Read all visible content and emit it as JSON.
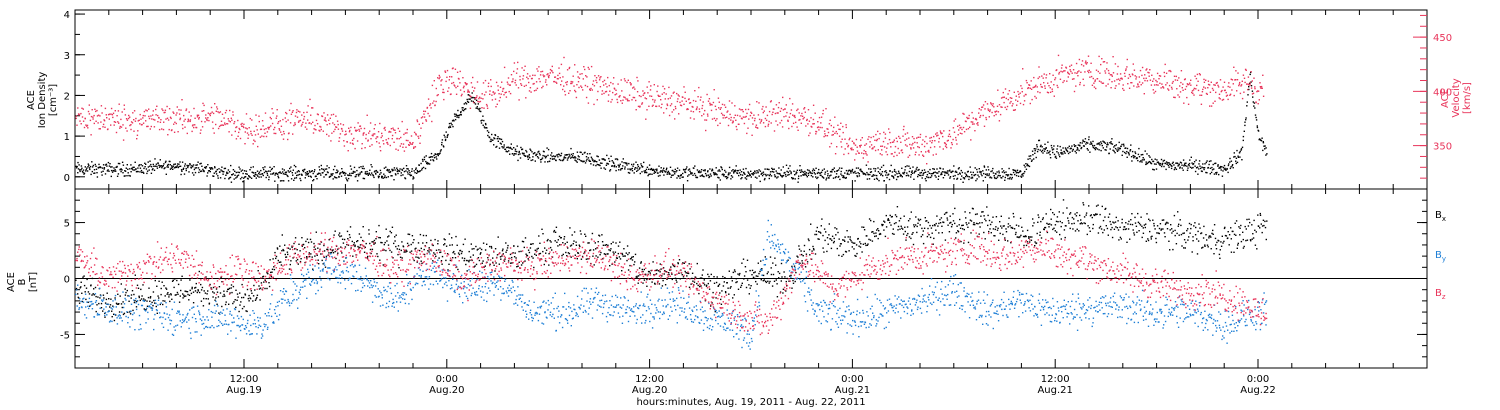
{
  "figure": {
    "xlabel": "hours:minutes, Aug. 19, 2011 - Aug. 22, 2011"
  },
  "colors": {
    "black": "#000000",
    "pink": "#e8345a",
    "blue": "#1e7fd6"
  },
  "chart_data": [
    {
      "type": "scatter",
      "panel": "top",
      "left_ylabel": [
        "ACE",
        "Ion Density",
        "[cm⁻³]"
      ],
      "right_ylabel": [
        "ACE",
        "Velocity",
        "[km/s]"
      ],
      "x_ticks": [
        {
          "hour": 12,
          "label": "12:00",
          "sublabel": "Aug.19"
        },
        {
          "hour": 24,
          "label": "0:00",
          "sublabel": "Aug.20"
        },
        {
          "hour": 36,
          "label": "12:00",
          "sublabel": "Aug.20"
        },
        {
          "hour": 48,
          "label": "0:00",
          "sublabel": "Aug.21"
        },
        {
          "hour": 60,
          "label": "12:00",
          "sublabel": "Aug.21"
        },
        {
          "hour": 72,
          "label": "0:00",
          "sublabel": "Aug.22"
        }
      ],
      "xlim_hours": [
        2,
        82
      ],
      "ylim": [
        -0.3,
        4.1
      ],
      "yticks": [
        "0",
        "1",
        "2",
        "3",
        "4"
      ],
      "right_ylim": [
        310,
        475
      ],
      "right_yticks": [
        "350",
        "400",
        "450"
      ],
      "series": [
        {
          "name": "",
          "color": "black",
          "axis": "left",
          "keyframes": [
            [
              2,
              0.2
            ],
            [
              5,
              0.2
            ],
            [
              8,
              0.3
            ],
            [
              11,
              0.1
            ],
            [
              14,
              0.1
            ],
            [
              17,
              0.1
            ],
            [
              20,
              0.1
            ],
            [
              22,
              0.1
            ],
            [
              23.5,
              0.6
            ],
            [
              24.5,
              1.5
            ],
            [
              25.5,
              2.0
            ],
            [
              26.5,
              1.0
            ],
            [
              28,
              0.6
            ],
            [
              30,
              0.5
            ],
            [
              32,
              0.5
            ],
            [
              34,
              0.3
            ],
            [
              36,
              0.2
            ],
            [
              38,
              0.1
            ],
            [
              40,
              0.1
            ],
            [
              42,
              0.1
            ],
            [
              44,
              0.1
            ],
            [
              46,
              0.1
            ],
            [
              48,
              0.1
            ],
            [
              50,
              0.1
            ],
            [
              52,
              0.1
            ],
            [
              54,
              0.1
            ],
            [
              56,
              0.1
            ],
            [
              58,
              0.1
            ],
            [
              59,
              0.8
            ],
            [
              60,
              0.6
            ],
            [
              62,
              0.8
            ],
            [
              64,
              0.7
            ],
            [
              66,
              0.3
            ],
            [
              68,
              0.3
            ],
            [
              70,
              0.2
            ],
            [
              71,
              0.6
            ],
            [
              71.5,
              2.5
            ],
            [
              72,
              1.0
            ],
            [
              72.5,
              0.6
            ]
          ],
          "spread": 0.25
        },
        {
          "name": "",
          "color": "pink",
          "axis": "right",
          "keyframes": [
            [
              2,
              377
            ],
            [
              4,
              375
            ],
            [
              6,
              374
            ],
            [
              8,
              375
            ],
            [
              10,
              376
            ],
            [
              11,
              372
            ],
            [
              12,
              366
            ],
            [
              14,
              370
            ],
            [
              16,
              375
            ],
            [
              18,
              362
            ],
            [
              20,
              358
            ],
            [
              22,
              355
            ],
            [
              23,
              390
            ],
            [
              24,
              415
            ],
            [
              25,
              405
            ],
            [
              26,
              395
            ],
            [
              27,
              400
            ],
            [
              28,
              410
            ],
            [
              30,
              415
            ],
            [
              32,
              410
            ],
            [
              34,
              400
            ],
            [
              36,
              395
            ],
            [
              38,
              390
            ],
            [
              40,
              382
            ],
            [
              42,
              375
            ],
            [
              44,
              380
            ],
            [
              46,
              372
            ],
            [
              47,
              358
            ],
            [
              48,
              348
            ],
            [
              50,
              355
            ],
            [
              52,
              350
            ],
            [
              54,
              362
            ],
            [
              56,
              382
            ],
            [
              58,
              400
            ],
            [
              60,
              412
            ],
            [
              62,
              420
            ],
            [
              64,
              415
            ],
            [
              66,
              412
            ],
            [
              68,
              405
            ],
            [
              70,
              402
            ],
            [
              71.5,
              410
            ],
            [
              72,
              402
            ]
          ],
          "spread": 22
        }
      ]
    },
    {
      "type": "scatter",
      "panel": "bottom",
      "left_ylabel": [
        "ACE",
        "B",
        "[nT]"
      ],
      "legend": [
        {
          "label": "Bx",
          "color": "black"
        },
        {
          "label": "By",
          "color": "blue"
        },
        {
          "label": "Bz",
          "color": "pink"
        }
      ],
      "legend_position": "right",
      "xlim_hours": [
        2,
        82
      ],
      "ylim": [
        -8,
        8
      ],
      "yticks": [
        "-5",
        "0",
        "5"
      ],
      "zero_line": true,
      "series": [
        {
          "name": "Bx",
          "color": "black",
          "keyframes": [
            [
              2,
              -1
            ],
            [
              4,
              -2
            ],
            [
              6,
              -1.5
            ],
            [
              8,
              -1
            ],
            [
              10,
              -1
            ],
            [
              12,
              -2
            ],
            [
              13,
              -1
            ],
            [
              14,
              2
            ],
            [
              16,
              2.5
            ],
            [
              18,
              3
            ],
            [
              20,
              3
            ],
            [
              22,
              3
            ],
            [
              24,
              2.5
            ],
            [
              26,
              2
            ],
            [
              28,
              2
            ],
            [
              30,
              3
            ],
            [
              32,
              3
            ],
            [
              34,
              2.5
            ],
            [
              36,
              0
            ],
            [
              38,
              1
            ],
            [
              40,
              -1
            ],
            [
              42,
              0.5
            ],
            [
              44,
              0
            ],
            [
              46,
              4
            ],
            [
              48,
              3
            ],
            [
              50,
              5
            ],
            [
              52,
              4.5
            ],
            [
              54,
              5
            ],
            [
              56,
              5
            ],
            [
              58,
              4
            ],
            [
              60,
              5
            ],
            [
              62,
              5.5
            ],
            [
              64,
              4.5
            ],
            [
              66,
              4.5
            ],
            [
              68,
              4
            ],
            [
              70,
              3.5
            ],
            [
              72,
              4.5
            ]
          ],
          "spread": 2.2
        },
        {
          "name": "By",
          "color": "blue",
          "keyframes": [
            [
              2,
              -2
            ],
            [
              4,
              -2.5
            ],
            [
              6,
              -3
            ],
            [
              8,
              -3.5
            ],
            [
              10,
              -3.5
            ],
            [
              12,
              -4
            ],
            [
              13,
              -4
            ],
            [
              15,
              -1
            ],
            [
              17,
              1
            ],
            [
              19,
              0
            ],
            [
              21,
              -2
            ],
            [
              23,
              1
            ],
            [
              25,
              -1
            ],
            [
              27,
              0
            ],
            [
              29,
              -3
            ],
            [
              31,
              -3
            ],
            [
              33,
              -2
            ],
            [
              35,
              -3
            ],
            [
              37,
              -2
            ],
            [
              39,
              -3
            ],
            [
              41,
              -4
            ],
            [
              42,
              -5
            ],
            [
              43,
              4
            ],
            [
              44,
              2
            ],
            [
              46,
              -3
            ],
            [
              48,
              -3.5
            ],
            [
              50,
              -3
            ],
            [
              52,
              -2
            ],
            [
              54,
              -1
            ],
            [
              56,
              -3
            ],
            [
              58,
              -2
            ],
            [
              60,
              -3
            ],
            [
              62,
              -2.5
            ],
            [
              64,
              -2.5
            ],
            [
              66,
              -3
            ],
            [
              68,
              -3
            ],
            [
              70,
              -4
            ],
            [
              72,
              -3
            ]
          ],
          "spread": 2.2
        },
        {
          "name": "Bz",
          "color": "pink",
          "keyframes": [
            [
              2,
              2
            ],
            [
              4,
              0
            ],
            [
              6,
              1
            ],
            [
              8,
              2
            ],
            [
              10,
              0
            ],
            [
              12,
              1
            ],
            [
              13,
              0
            ],
            [
              15,
              2
            ],
            [
              17,
              2.5
            ],
            [
              19,
              2.5
            ],
            [
              21,
              1
            ],
            [
              23,
              2
            ],
            [
              25,
              0
            ],
            [
              27,
              1.5
            ],
            [
              29,
              1
            ],
            [
              31,
              2
            ],
            [
              33,
              2
            ],
            [
              35,
              0
            ],
            [
              37,
              1
            ],
            [
              39,
              -1
            ],
            [
              41,
              -3
            ],
            [
              43,
              -4
            ],
            [
              45,
              2
            ],
            [
              47,
              -1
            ],
            [
              49,
              1
            ],
            [
              51,
              2
            ],
            [
              53,
              2
            ],
            [
              55,
              3
            ],
            [
              57,
              2
            ],
            [
              59,
              3
            ],
            [
              61,
              2
            ],
            [
              63,
              1
            ],
            [
              65,
              0
            ],
            [
              67,
              -1
            ],
            [
              69,
              -1
            ],
            [
              71,
              -2
            ],
            [
              72,
              -3
            ]
          ],
          "spread": 2.2
        }
      ]
    }
  ]
}
